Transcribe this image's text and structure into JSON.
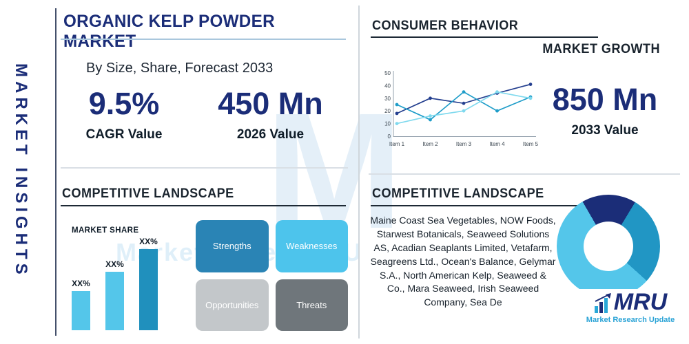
{
  "colors": {
    "navy": "#1b2d78",
    "teal": "#2196c4",
    "sky": "#54c6ea",
    "divider": "#d9dfe5",
    "header_line": "#1d2935"
  },
  "sidebar": {
    "label": "MARKET INSIGHTS"
  },
  "title_block": {
    "title": "ORGANIC KELP POWDER MARKET",
    "subtitle": "By Size, Share, Forecast 2033"
  },
  "stats": {
    "cagr": {
      "value": "9.5%",
      "label": "CAGR Value"
    },
    "value_2026": {
      "value": "450 Mn",
      "label": "2026 Value"
    },
    "value_2033": {
      "value": "850 Mn",
      "label": "2033 Value"
    }
  },
  "sections": {
    "consumer_behavior": "CONSUMER BEHAVIOR",
    "market_growth": "MARKET GROWTH",
    "competitive_landscape_left": "COMPETITIVE LANDSCAPE",
    "competitive_landscape_right": "COMPETITIVE LANDSCAPE",
    "market_share_label": "MARKET SHARE"
  },
  "swot": [
    {
      "label": "Strengths",
      "color": "#2a84b5"
    },
    {
      "label": "Weaknesses",
      "color": "#4dc4ec"
    },
    {
      "label": "Opportunities",
      "color": "#c3c7ca"
    },
    {
      "label": "Threats",
      "color": "#6f767b"
    }
  ],
  "companies": "Maine Coast Sea Vegetables, NOW Foods, Starwest Botanicals, Seaweed Solutions AS, Acadian Seaplants Limited, Vetafarm, Seagreens Ltd., Ocean's Balance, Gelymar S.A., North American Kelp, Seaweed & Co., Mara Seaweed, Irish Seaweed Company, Sea De",
  "logo": {
    "name": "MRU",
    "tagline": "Market Research Update"
  },
  "watermark": {
    "letter": "M",
    "text": "Market Research Update"
  },
  "chart_data": [
    {
      "type": "line",
      "title": "Market Growth",
      "x": [
        "Item 1",
        "Item 2",
        "Item 3",
        "Item 4",
        "Item 5"
      ],
      "ylim": [
        0,
        50
      ],
      "yticks": [
        0,
        10,
        20,
        30,
        40,
        50
      ],
      "grid": false,
      "legend": false,
      "series": [
        {
          "name": "navy",
          "color": "#243f8f",
          "values": [
            18,
            30,
            26,
            34,
            41
          ]
        },
        {
          "name": "teal",
          "color": "#1f9dc9",
          "values": [
            25,
            13,
            35,
            20,
            31
          ]
        },
        {
          "name": "cyan",
          "color": "#7fd9ee",
          "values": [
            10,
            16,
            20,
            35,
            30
          ]
        }
      ]
    },
    {
      "type": "bar",
      "title": "MARKET SHARE",
      "categories": [
        "XX%",
        "XX%",
        "XX%"
      ],
      "values": [
        30,
        45,
        62
      ],
      "colors": [
        "#54c6ea",
        "#54c6ea",
        "#2090bd"
      ],
      "ylim": [
        0,
        70
      ]
    },
    {
      "type": "pie",
      "title": "",
      "values": [
        17,
        28,
        55
      ],
      "colors": [
        "#1b2d78",
        "#2196c4",
        "#54c6ea"
      ],
      "start_angle_deg": -30
    }
  ]
}
